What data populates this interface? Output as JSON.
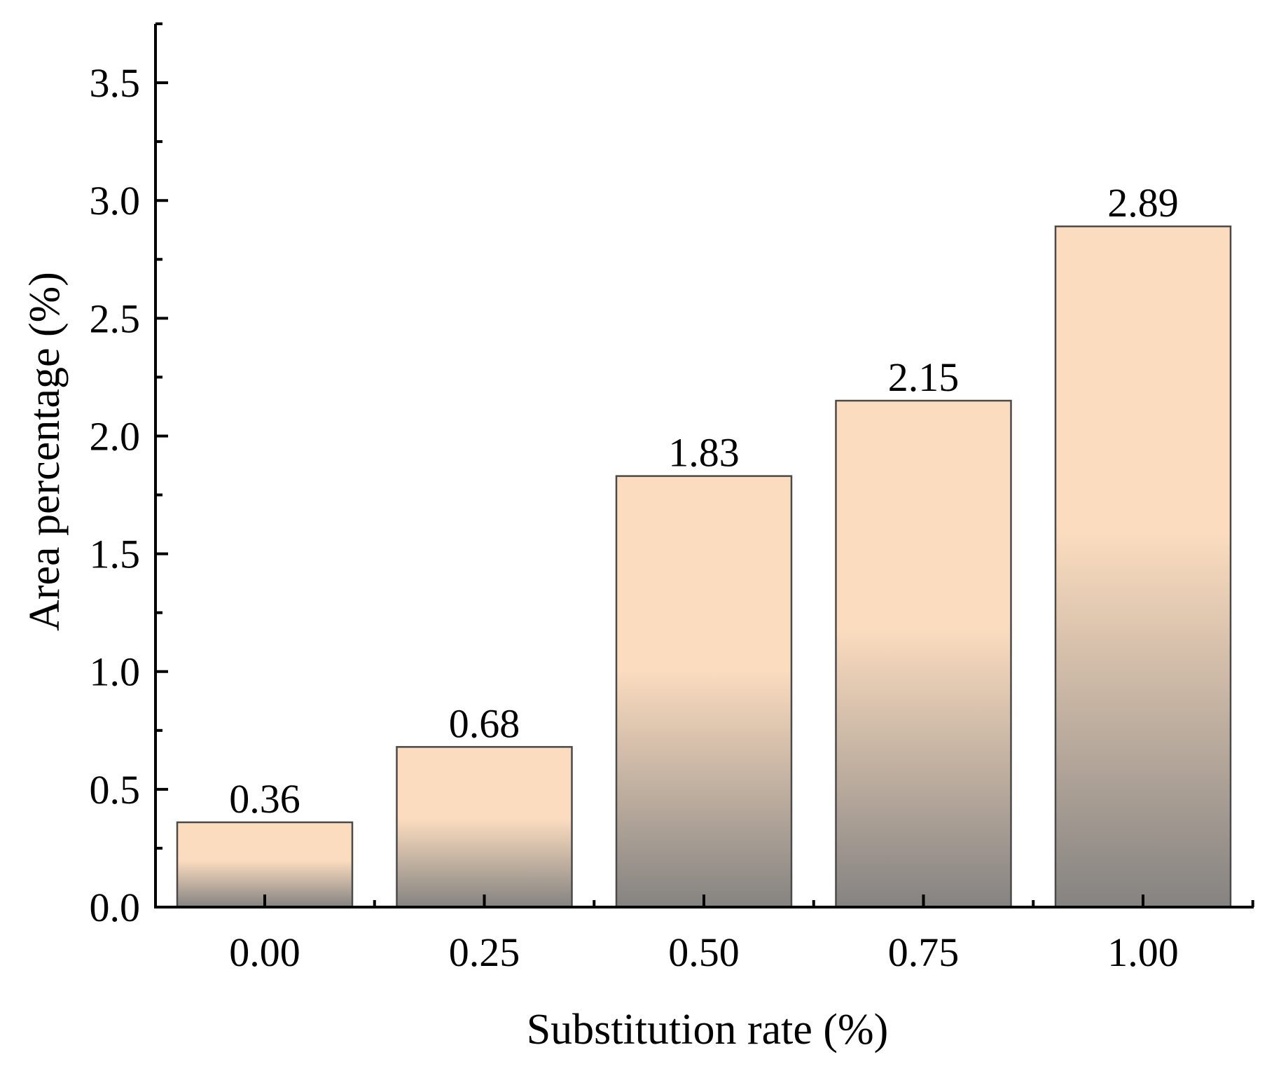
{
  "chart_data": {
    "type": "bar",
    "categories": [
      "0.00",
      "0.25",
      "0.50",
      "0.75",
      "1.00"
    ],
    "values": [
      0.36,
      0.68,
      1.83,
      2.15,
      2.89
    ],
    "value_labels": [
      "0.36",
      "0.68",
      "1.83",
      "2.15",
      "2.89"
    ],
    "title": "",
    "xlabel": "Substitution rate (%)",
    "ylabel": "Area percentage (%)",
    "ylim": [
      0,
      3.75
    ],
    "yticks": [
      0.0,
      0.5,
      1.0,
      1.5,
      2.0,
      2.5,
      3.0,
      3.5
    ],
    "ytick_labels": [
      "0.0",
      "0.5",
      "1.0",
      "1.5",
      "2.0",
      "2.5",
      "3.0",
      "3.5"
    ],
    "grid": false,
    "legend": "none",
    "bar_gradient": {
      "top_color": "#fbdcbf",
      "bottom_color": "#858381"
    }
  }
}
